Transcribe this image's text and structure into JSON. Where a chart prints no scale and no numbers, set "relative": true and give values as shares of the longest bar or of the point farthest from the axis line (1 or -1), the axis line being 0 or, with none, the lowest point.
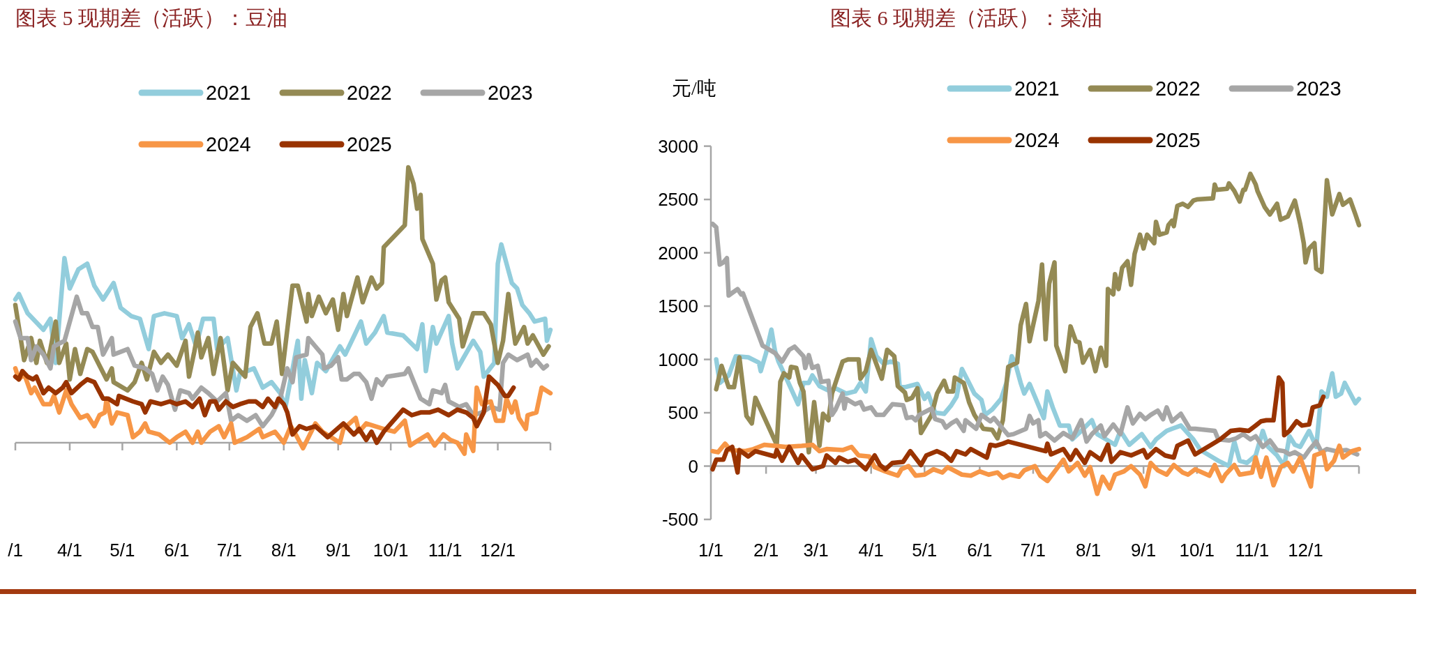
{
  "chart_data": [
    {
      "type": "line",
      "title": "图表 5  现期差（活跃）：豆油",
      "relative": true,
      "legend": "top",
      "xlim": [
        "--03-01",
        "--12-31"
      ],
      "xticks": [
        {
          "value": "--03-01",
          "label": "/1"
        },
        {
          "value": "--04-01",
          "label": "4/1"
        },
        {
          "value": "--05-01",
          "label": "5/1"
        },
        {
          "value": "--06-01",
          "label": "6/1"
        },
        {
          "value": "--07-01",
          "label": "7/1"
        },
        {
          "value": "--08-01",
          "label": "8/1"
        },
        {
          "value": "--09-01",
          "label": "9/1"
        },
        {
          "value": "--10-01",
          "label": "10/1"
        },
        {
          "value": "--11-01",
          "label": "11/1"
        },
        {
          "value": "--12-01",
          "label": "12/1"
        },
        {
          "value": "--12-31",
          "label": null
        }
      ],
      "series": [
        {
          "name": "2021",
          "color": "#92cddc",
          "x": [
            "--03-01",
            "--03-03",
            "--03-08",
            "--03-17",
            "--03-21",
            "--03-24",
            "--03-29",
            "--04-01",
            "--04-06",
            "--04-11",
            "--04-15",
            "--04-20",
            "--04-26",
            "--04-30",
            "--05-06",
            "--05-11",
            "--05-16",
            "--05-19",
            "--05-25",
            "--06-01",
            "--06-04",
            "--06-08",
            "--06-12",
            "--06-16",
            "--06-22",
            "--06-24",
            "--06-30",
            "--07-05",
            "--07-07",
            "--07-15",
            "--07-20",
            "--07-25",
            "--07-30",
            "--08-02",
            "--08-09",
            "--08-11",
            "--08-13",
            "--08-17",
            "--08-20",
            "--08-25",
            "--09-02",
            "--09-05",
            "--09-14",
            "--09-17",
            "--09-22",
            "--09-27",
            "--09-29",
            "--10-08",
            "--10-16",
            "--10-19",
            "--10-21",
            "--10-25",
            "--10-27",
            "--11-03",
            "--11-05",
            "--11-08",
            "--11-17",
            "--11-21",
            "--11-23",
            "--11-29",
            "--12-01",
            "--12-03",
            "--12-06",
            "--12-09",
            "--12-12",
            "--12-15",
            "--12-19",
            "--12-22",
            "--12-28",
            "--12-29",
            "--12-31"
          ],
          "values": [
            0.52,
            0.54,
            0.47,
            0.41,
            0.45,
            0.29,
            0.67,
            0.56,
            0.63,
            0.65,
            0.57,
            0.52,
            0.58,
            0.49,
            0.46,
            0.45,
            0.34,
            0.46,
            0.47,
            0.46,
            0.38,
            0.43,
            0.35,
            0.45,
            0.45,
            0.34,
            0.38,
            0.19,
            0.25,
            0.27,
            0.2,
            0.22,
            0.18,
            0.13,
            0.37,
            0.16,
            0.3,
            0.18,
            0.29,
            0.26,
            0.35,
            0.32,
            0.44,
            0.36,
            0.4,
            0.46,
            0.4,
            0.39,
            0.34,
            0.43,
            0.26,
            0.42,
            0.36,
            0.46,
            0.36,
            0.27,
            0.37,
            0.33,
            0.24,
            0.29,
            0.65,
            0.72,
            0.65,
            0.58,
            0.56,
            0.5,
            0.47,
            0.44,
            0.45,
            0.37,
            0.41
          ]
        },
        {
          "name": "2022",
          "color": "#948a54",
          "x": [
            "--03-01",
            "--03-06",
            "--03-10",
            "--03-13",
            "--03-15",
            "--03-19",
            "--03-21",
            "--03-24",
            "--03-26",
            "--03-30",
            "--04-01",
            "--04-04",
            "--04-07",
            "--04-11",
            "--04-14",
            "--04-18",
            "--04-22",
            "--04-25",
            "--04-26",
            "--05-04",
            "--05-08",
            "--05-12",
            "--05-15",
            "--05-19",
            "--05-23",
            "--05-27",
            "--06-01",
            "--06-06",
            "--06-08",
            "--06-11",
            "--06-13",
            "--06-15",
            "--06-19",
            "--06-22",
            "--06-26",
            "--06-30",
            "--07-03",
            "--07-10",
            "--07-13",
            "--07-17",
            "--07-21",
            "--07-25",
            "--07-28",
            "--07-31",
            "--08-06",
            "--08-09",
            "--08-14",
            "--08-15",
            "--08-17",
            "--08-21",
            "--08-25",
            "--08-29",
            "--09-01",
            "--09-04",
            "--09-06",
            "--09-12",
            "--09-15",
            "--09-20",
            "--09-23",
            "--09-26",
            "--09-27",
            "--10-09",
            "--10-11",
            "--10-14",
            "--10-16",
            "--10-18",
            "--10-19",
            "--10-25",
            "--10-27",
            "--10-30",
            "--11-01",
            "--11-03",
            "--11-09",
            "--11-11",
            "--11-17",
            "--11-23",
            "--11-27",
            "--12-01",
            "--12-04",
            "--12-07",
            "--12-11",
            "--12-16",
            "--12-18",
            "--12-21",
            "--12-27",
            "--12-30"
          ],
          "values": [
            0.5,
            0.3,
            0.38,
            0.29,
            0.37,
            0.29,
            0.34,
            0.44,
            0.29,
            0.36,
            0.23,
            0.34,
            0.25,
            0.34,
            0.33,
            0.28,
            0.23,
            0.27,
            0.22,
            0.19,
            0.22,
            0.29,
            0.23,
            0.33,
            0.29,
            0.32,
            0.28,
            0.37,
            0.24,
            0.33,
            0.4,
            0.31,
            0.38,
            0.25,
            0.38,
            0.19,
            0.29,
            0.24,
            0.42,
            0.47,
            0.36,
            0.36,
            0.44,
            0.25,
            0.57,
            0.57,
            0.44,
            0.54,
            0.46,
            0.53,
            0.47,
            0.52,
            0.41,
            0.54,
            0.46,
            0.6,
            0.51,
            0.6,
            0.56,
            0.58,
            0.71,
            0.79,
            1.0,
            0.94,
            0.85,
            0.9,
            0.74,
            0.65,
            0.52,
            0.59,
            0.6,
            0.51,
            0.45,
            0.35,
            0.47,
            0.47,
            0.43,
            0.29,
            0.37,
            0.54,
            0.36,
            0.42,
            0.36,
            0.39,
            0.32,
            0.35
          ]
        },
        {
          "name": "2023",
          "color": "#a6a6a6",
          "x": [
            "--03-01",
            "--03-04",
            "--03-08",
            "--03-10",
            "--03-13",
            "--03-17",
            "--03-21",
            "--03-23",
            "--03-29",
            "--04-05",
            "--04-08",
            "--04-11",
            "--04-14",
            "--04-17",
            "--04-20",
            "--04-25",
            "--04-26",
            "--05-04",
            "--05-08",
            "--05-14",
            "--05-18",
            "--05-21",
            "--05-24",
            "--05-27",
            "--05-31",
            "--06-03",
            "--06-08",
            "--06-10",
            "--06-15",
            "--06-19",
            "--06-24",
            "--06-29",
            "--07-02",
            "--07-06",
            "--07-11",
            "--07-16",
            "--07-20",
            "--07-25",
            "--07-30",
            "--08-03",
            "--08-06",
            "--08-08",
            "--08-14",
            "--08-15",
            "--08-19",
            "--08-23",
            "--08-24",
            "--08-28",
            "--09-01",
            "--09-03",
            "--09-06",
            "--09-10",
            "--09-13",
            "--09-17",
            "--09-20",
            "--09-23",
            "--09-26",
            "--09-29",
            "--10-09",
            "--10-11",
            "--10-18",
            "--10-23",
            "--10-25",
            "--10-30",
            "--11-01",
            "--11-03",
            "--11-09",
            "--11-13",
            "--11-17",
            "--11-22",
            "--11-27",
            "--12-02",
            "--12-04",
            "--12-07",
            "--12-12",
            "--12-18",
            "--12-20",
            "--12-23",
            "--12-27",
            "--12-29"
          ],
          "values": [
            0.44,
            0.38,
            0.38,
            0.3,
            0.35,
            0.32,
            0.27,
            0.35,
            0.37,
            0.53,
            0.47,
            0.47,
            0.42,
            0.42,
            0.32,
            0.38,
            0.32,
            0.34,
            0.28,
            0.27,
            0.25,
            0.19,
            0.24,
            0.21,
            0.12,
            0.19,
            0.18,
            0.16,
            0.2,
            0.18,
            0.15,
            0.18,
            0.08,
            0.1,
            0.08,
            0.1,
            0.06,
            0.1,
            0.16,
            0.27,
            0.22,
            0.31,
            0.32,
            0.38,
            0.35,
            0.32,
            0.27,
            0.28,
            0.31,
            0.23,
            0.23,
            0.25,
            0.25,
            0.22,
            0.16,
            0.23,
            0.21,
            0.24,
            0.25,
            0.27,
            0.16,
            0.14,
            0.19,
            0.18,
            0.21,
            0.15,
            0.13,
            0.14,
            0.1,
            0.11,
            0.13,
            0.12,
            0.29,
            0.32,
            0.3,
            0.32,
            0.28,
            0.3,
            0.27,
            0.28
          ]
        },
        {
          "name": "2024",
          "color": "#f79646",
          "x": [
            "--03-01",
            "--03-03",
            "--03-06",
            "--03-10",
            "--03-12",
            "--03-17",
            "--03-21",
            "--03-23",
            "--03-26",
            "--03-30",
            "--04-02",
            "--04-07",
            "--04-11",
            "--04-15",
            "--04-18",
            "--04-21",
            "--04-22",
            "--04-25",
            "--04-28",
            "--05-04",
            "--05-07",
            "--05-11",
            "--05-14",
            "--05-16",
            "--05-22",
            "--05-28",
            "--06-01",
            "--06-06",
            "--06-10",
            "--06-13",
            "--06-15",
            "--06-20",
            "--06-25",
            "--06-28",
            "--07-02",
            "--07-04",
            "--07-11",
            "--07-18",
            "--07-20",
            "--07-27",
            "--08-01",
            "--08-05",
            "--08-07",
            "--08-12",
            "--08-19",
            "--08-23",
            "--09-02",
            "--09-04",
            "--09-11",
            "--09-13",
            "--09-17",
            "--09-27",
            "--10-03",
            "--10-09",
            "--10-12",
            "--10-17",
            "--10-22",
            "--10-26",
            "--10-31",
            "--11-04",
            "--11-08",
            "--11-12",
            "--11-13",
            "--11-17",
            "--11-19",
            "--11-22",
            "--11-27",
            "--11-30",
            "--12-04",
            "--12-06",
            "--12-09",
            "--12-11",
            "--12-13",
            "--12-17",
            "--12-18",
            "--12-23",
            "--12-26",
            "--12-31"
          ],
          "values": [
            0.27,
            0.23,
            0.25,
            0.18,
            0.2,
            0.14,
            0.14,
            0.17,
            0.11,
            0.19,
            0.14,
            0.09,
            0.1,
            0.06,
            0.1,
            0.11,
            0.16,
            0.07,
            0.11,
            0.1,
            0.02,
            0.04,
            0.07,
            0.04,
            0.03,
            0.0,
            0.02,
            0.04,
            0.0,
            0.04,
            0.0,
            0.04,
            0.06,
            0.02,
            0.07,
            0.0,
            0.02,
            0.05,
            0.02,
            0.04,
            0.0,
            0.06,
            0.04,
            -0.02,
            0.07,
            0.04,
            0.0,
            0.05,
            0.09,
            0.04,
            0.07,
            0.05,
            0.04,
            0.08,
            -0.01,
            0.01,
            0.03,
            -0.01,
            0.03,
            0.01,
            0.0,
            -0.04,
            0.03,
            -0.03,
            0.2,
            0.14,
            0.15,
            0.08,
            0.08,
            0.16,
            0.11,
            0.15,
            0.09,
            0.05,
            0.1,
            0.11,
            0.2,
            0.18
          ]
        },
        {
          "name": "2025",
          "color": "#993300",
          "x": [
            "--03-01",
            "--03-03",
            "--03-05",
            "--03-08",
            "--03-11",
            "--03-13",
            "--03-17",
            "--03-20",
            "--03-24",
            "--03-28",
            "--03-30",
            "--04-02",
            "--04-07",
            "--04-11",
            "--04-15",
            "--04-20",
            "--04-23",
            "--04-28",
            "--04-29",
            "--05-07",
            "--05-12",
            "--05-14",
            "--05-17",
            "--05-23",
            "--05-28",
            "--06-01",
            "--06-06",
            "--06-10",
            "--06-14",
            "--06-17",
            "--06-20",
            "--06-23",
            "--06-25",
            "--06-29",
            "--07-03",
            "--07-07",
            "--07-12",
            "--07-16",
            "--07-20",
            "--07-23",
            "--07-27",
            "--07-29",
            "--08-01",
            "--08-03",
            "--08-06",
            "--08-10",
            "--08-14",
            "--08-19",
            "--08-26",
            "--09-04",
            "--09-10",
            "--09-13",
            "--09-17",
            "--09-20",
            "--09-23",
            "--09-27",
            "--10-08",
            "--10-13",
            "--10-18",
            "--10-23",
            "--10-28",
            "--11-03",
            "--11-08",
            "--11-13",
            "--11-17",
            "--11-19",
            "--11-23",
            "--11-26",
            "--12-01",
            "--12-05",
            "--12-07",
            "--12-10"
          ],
          "values": [
            0.24,
            0.23,
            0.26,
            0.24,
            0.23,
            0.24,
            0.18,
            0.2,
            0.18,
            0.2,
            0.22,
            0.18,
            0.21,
            0.23,
            0.22,
            0.16,
            0.16,
            0.14,
            0.17,
            0.15,
            0.14,
            0.11,
            0.15,
            0.14,
            0.15,
            0.14,
            0.15,
            0.13,
            0.16,
            0.1,
            0.15,
            0.15,
            0.12,
            0.15,
            0.13,
            0.14,
            0.15,
            0.15,
            0.13,
            0.16,
            0.13,
            0.16,
            0.14,
            0.11,
            0.03,
            0.06,
            0.05,
            0.06,
            0.02,
            0.07,
            0.03,
            0.05,
            0.01,
            0.04,
            0.0,
            0.04,
            0.12,
            0.1,
            0.11,
            0.11,
            0.12,
            0.1,
            0.12,
            0.11,
            0.09,
            0.06,
            0.11,
            0.24,
            0.21,
            0.17,
            0.17,
            0.2
          ]
        }
      ]
    },
    {
      "type": "line",
      "title": "图表 6  现期差（活跃）：菜油",
      "ylabel": "元/吨",
      "legend": "top",
      "xlim": [
        "--01-01",
        "--12-31"
      ],
      "ylim": [
        -500,
        3000
      ],
      "yticks": [
        -500,
        0,
        500,
        1000,
        1500,
        2000,
        2500,
        3000
      ],
      "xticks": [
        {
          "value": "--01-01",
          "label": "1/1"
        },
        {
          "value": "--02-01",
          "label": "2/1"
        },
        {
          "value": "--03-01",
          "label": "3/1"
        },
        {
          "value": "--04-01",
          "label": "4/1"
        },
        {
          "value": "--05-01",
          "label": "5/1"
        },
        {
          "value": "--06-01",
          "label": "6/1"
        },
        {
          "value": "--07-01",
          "label": "7/1"
        },
        {
          "value": "--08-01",
          "label": "8/1"
        },
        {
          "value": "--09-01",
          "label": "9/1"
        },
        {
          "value": "--10-01",
          "label": "10/1"
        },
        {
          "value": "--11-01",
          "label": "11/1"
        },
        {
          "value": "--12-01",
          "label": "12/1"
        },
        {
          "value": "--12-31",
          "label": null
        }
      ],
      "series": [
        {
          "name": "2021",
          "color": "#92cddc",
          "x": [
            "--01-04",
            "--01-06",
            "--01-11",
            "--01-15",
            "--01-22",
            "--01-28",
            "--01-29",
            "--02-01",
            "--02-04",
            "--02-06",
            "--02-08",
            "--02-13",
            "--02-19",
            "--02-22",
            "--02-25",
            "--02-27",
            "--03-03",
            "--03-09",
            "--03-12",
            "--03-18",
            "--03-23",
            "--03-26",
            "--03-29",
            "--04-01",
            "--04-04",
            "--04-08",
            "--04-12",
            "--04-16",
            "--04-17",
            "--04-20",
            "--04-27",
            "--05-01",
            "--05-03",
            "--05-07",
            "--05-12",
            "--05-16",
            "--05-19",
            "--05-22",
            "--05-26",
            "--05-29",
            "--06-02",
            "--06-04",
            "--06-08",
            "--06-13",
            "--06-16",
            "--06-19",
            "--06-21",
            "--06-24",
            "--06-26",
            "--06-29",
            "--07-02",
            "--07-05",
            "--07-07",
            "--07-09",
            "--07-12",
            "--07-16",
            "--07-21",
            "--07-23",
            "--07-28",
            "--08-03",
            "--08-06",
            "--08-11",
            "--08-16",
            "--08-19",
            "--08-24",
            "--08-31",
            "--09-05",
            "--09-08",
            "--09-14",
            "--09-17",
            "--09-22",
            "--09-29",
            "--10-03",
            "--10-10",
            "--10-13",
            "--10-19",
            "--10-22",
            "--10-25",
            "--10-29",
            "--11-03",
            "--11-07",
            "--11-10",
            "--11-15",
            "--11-19",
            "--11-22",
            "--11-25",
            "--11-28",
            "--12-03",
            "--12-07",
            "--12-10",
            "--12-13",
            "--12-16",
            "--12-18",
            "--12-21",
            "--12-23",
            "--12-29",
            "--12-31"
          ],
          "values": [
            1000,
            780,
            850,
            1030,
            1020,
            970,
            890,
            1060,
            1280,
            1080,
            980,
            800,
            580,
            780,
            780,
            850,
            750,
            700,
            730,
            680,
            700,
            780,
            700,
            1190,
            1030,
            960,
            980,
            960,
            750,
            740,
            770,
            630,
            680,
            500,
            490,
            570,
            650,
            910,
            780,
            680,
            620,
            480,
            530,
            630,
            780,
            1030,
            960,
            780,
            680,
            770,
            650,
            530,
            450,
            700,
            550,
            380,
            380,
            250,
            330,
            430,
            300,
            250,
            200,
            330,
            200,
            300,
            180,
            250,
            330,
            350,
            380,
            250,
            150,
            80,
            50,
            0,
            230,
            50,
            30,
            100,
            330,
            180,
            100,
            0,
            280,
            200,
            180,
            330,
            180,
            700,
            650,
            870,
            650,
            680,
            780,
            590,
            630
          ]
        },
        {
          "name": "2022",
          "color": "#948a54",
          "x": [
            "--01-04",
            "--01-07",
            "--01-11",
            "--01-14",
            "--01-17",
            "--01-21",
            "--01-24",
            "--01-26",
            "--02-07",
            "--02-09",
            "--02-11",
            "--02-14",
            "--02-15",
            "--02-18",
            "--02-20",
            "--02-22",
            "--02-25",
            "--02-28",
            "--03-03",
            "--03-05",
            "--03-08",
            "--03-10",
            "--03-16",
            "--03-19",
            "--03-25",
            "--03-26",
            "--03-29",
            "--04-01",
            "--04-07",
            "--04-10",
            "--04-14",
            "--04-16",
            "--04-20",
            "--04-21",
            "--04-24",
            "--04-27",
            "--04-29",
            "--05-05",
            "--05-08",
            "--05-12",
            "--05-14",
            "--05-17",
            "--05-18",
            "--05-23",
            "--05-26",
            "--05-29",
            "--06-03",
            "--06-08",
            "--06-11",
            "--06-14",
            "--06-17",
            "--06-22",
            "--06-24",
            "--06-27",
            "--06-29",
            "--07-04",
            "--07-06",
            "--07-08",
            "--07-10",
            "--07-13",
            "--07-14",
            "--07-19",
            "--07-22",
            "--07-25",
            "--07-27",
            "--07-29",
            "--08-02",
            "--08-05",
            "--08-08",
            "--08-11",
            "--08-12",
            "--08-15",
            "--08-16",
            "--08-18",
            "--08-20",
            "--08-23",
            "--08-25",
            "--08-27",
            "--08-30",
            "--09-01",
            "--09-03",
            "--09-07",
            "--09-08",
            "--09-10",
            "--09-14",
            "--09-15",
            "--09-17",
            "--09-18",
            "--09-20",
            "--09-23",
            "--09-26",
            "--09-29",
            "--10-01",
            "--10-10",
            "--10-11",
            "--10-12",
            "--10-18",
            "--10-19",
            "--10-22",
            "--10-25",
            "--10-27",
            "--10-28",
            "--10-31",
            "--11-03",
            "--11-04",
            "--11-08",
            "--11-11",
            "--11-15",
            "--11-17",
            "--11-21",
            "--11-25",
            "--11-28",
            "--11-30",
            "--12-01",
            "--12-03",
            "--12-06",
            "--12-07",
            "--12-10",
            "--12-13",
            "--12-16",
            "--12-20",
            "--12-22",
            "--12-26",
            "--12-29",
            "--12-31"
          ],
          "values": [
            720,
            940,
            740,
            740,
            1020,
            470,
            400,
            640,
            200,
            790,
            870,
            830,
            930,
            920,
            780,
            700,
            130,
            600,
            190,
            490,
            430,
            680,
            980,
            1000,
            1000,
            820,
            890,
            1090,
            820,
            1090,
            1030,
            750,
            690,
            620,
            640,
            730,
            310,
            480,
            680,
            800,
            700,
            700,
            830,
            780,
            600,
            480,
            350,
            340,
            260,
            430,
            930,
            970,
            1320,
            1520,
            1170,
            1550,
            1890,
            1190,
            1710,
            1910,
            1130,
            890,
            1310,
            1170,
            1160,
            970,
            1090,
            890,
            1110,
            940,
            1660,
            1610,
            1800,
            1660,
            1860,
            1920,
            1700,
            1990,
            2170,
            2040,
            2170,
            2090,
            2290,
            2170,
            2190,
            2260,
            2300,
            2250,
            2440,
            2460,
            2430,
            2490,
            2500,
            2510,
            2640,
            2590,
            2600,
            2650,
            2580,
            2480,
            2590,
            2590,
            2740,
            2640,
            2580,
            2430,
            2360,
            2460,
            2310,
            2340,
            2490,
            2270,
            2090,
            1910,
            2040,
            2090,
            1850,
            1820,
            2680,
            2360,
            2550,
            2450,
            2500,
            2360,
            2260
          ]
        },
        {
          "name": "2023",
          "color": "#a6a6a6",
          "x": [
            "--01-02",
            "--01-04",
            "--01-06",
            "--01-08",
            "--01-10",
            "--01-11",
            "--01-16",
            "--01-18",
            "--01-19",
            "--01-30",
            "--02-01",
            "--02-06",
            "--02-10",
            "--02-14",
            "--02-17",
            "--02-22",
            "--02-23",
            "--02-25",
            "--02-27",
            "--03-02",
            "--03-04",
            "--03-08",
            "--03-10",
            "--03-12",
            "--03-16",
            "--03-17",
            "--03-18",
            "--03-23",
            "--03-26",
            "--03-28",
            "--04-01",
            "--04-04",
            "--04-08",
            "--04-13",
            "--04-19",
            "--04-21",
            "--04-24",
            "--04-26",
            "--04-28",
            "--05-05",
            "--05-07",
            "--05-11",
            "--05-13",
            "--05-16",
            "--05-19",
            "--05-23",
            "--05-24",
            "--05-30",
            "--06-02",
            "--06-07",
            "--06-09",
            "--06-14",
            "--06-17",
            "--06-20",
            "--06-27",
            "--06-29",
            "--07-01",
            "--07-04",
            "--07-05",
            "--07-08",
            "--07-13",
            "--07-18",
            "--07-23",
            "--07-28",
            "--07-31",
            "--08-03",
            "--08-08",
            "--08-10",
            "--08-15",
            "--08-19",
            "--08-23",
            "--08-26",
            "--08-30",
            "--09-02",
            "--09-05",
            "--09-09",
            "--09-12",
            "--09-14",
            "--09-17",
            "--09-22",
            "--09-27",
            "--09-30",
            "--10-11",
            "--10-13",
            "--10-19",
            "--10-23",
            "--10-27",
            "--10-31",
            "--11-03",
            "--11-07",
            "--11-11",
            "--11-15",
            "--11-19",
            "--11-22",
            "--11-25",
            "--11-30",
            "--12-03",
            "--12-07",
            "--12-10",
            "--12-13",
            "--12-18",
            "--12-24",
            "--12-30"
          ],
          "values": [
            2270,
            2240,
            1890,
            1910,
            1950,
            1600,
            1660,
            1610,
            1620,
            1130,
            1110,
            1060,
            980,
            1090,
            1120,
            1030,
            920,
            1040,
            920,
            940,
            790,
            800,
            480,
            530,
            680,
            540,
            630,
            580,
            600,
            530,
            550,
            480,
            480,
            580,
            570,
            450,
            460,
            430,
            480,
            540,
            440,
            420,
            360,
            400,
            430,
            330,
            430,
            350,
            480,
            420,
            450,
            350,
            290,
            300,
            350,
            470,
            400,
            430,
            280,
            310,
            240,
            310,
            260,
            430,
            230,
            300,
            380,
            280,
            390,
            300,
            550,
            400,
            490,
            440,
            480,
            520,
            440,
            550,
            420,
            490,
            350,
            350,
            330,
            250,
            240,
            260,
            300,
            250,
            280,
            180,
            240,
            150,
            140,
            110,
            130,
            80,
            150,
            230,
            130,
            160,
            140,
            150,
            110
          ]
        },
        {
          "name": "2024",
          "color": "#f79646",
          "x": [
            "--01-02",
            "--01-05",
            "--01-09",
            "--01-12",
            "--01-20",
            "--01-25",
            "--01-31",
            "--02-06",
            "--02-12",
            "--02-21",
            "--02-27",
            "--03-03",
            "--03-07",
            "--03-16",
            "--03-21",
            "--03-25",
            "--03-31",
            "--04-03",
            "--04-09",
            "--04-16",
            "--04-18",
            "--04-22",
            "--04-26",
            "--05-01",
            "--05-06",
            "--05-11",
            "--05-14",
            "--05-22",
            "--05-27",
            "--06-01",
            "--06-06",
            "--06-11",
            "--06-14",
            "--06-18",
            "--06-23",
            "--06-26",
            "--07-02",
            "--07-05",
            "--07-09",
            "--07-14",
            "--07-18",
            "--07-21",
            "--07-26",
            "--07-30",
            "--08-02",
            "--08-06",
            "--08-09",
            "--08-13",
            "--08-16",
            "--08-21",
            "--08-25",
            "--08-30",
            "--09-02",
            "--09-05",
            "--09-09",
            "--09-14",
            "--09-18",
            "--09-23",
            "--09-26",
            "--09-30",
            "--10-08",
            "--10-11",
            "--10-15",
            "--10-17",
            "--10-22",
            "--10-25",
            "--11-01",
            "--11-03",
            "--11-06",
            "--11-09",
            "--11-13",
            "--11-17",
            "--11-21",
            "--11-24",
            "--11-28",
            "--12-04",
            "--12-06",
            "--12-11",
            "--12-13",
            "--12-17",
            "--12-20",
            "--12-22",
            "--12-27",
            "--12-31"
          ],
          "values": [
            140,
            130,
            210,
            150,
            140,
            160,
            200,
            190,
            180,
            190,
            200,
            140,
            160,
            150,
            180,
            100,
            90,
            -10,
            -50,
            -90,
            -30,
            0,
            -90,
            -80,
            -30,
            -60,
            -10,
            -80,
            -90,
            -50,
            -80,
            -60,
            -110,
            -80,
            -100,
            -40,
            0,
            -90,
            -140,
            -30,
            60,
            -50,
            30,
            -90,
            -10,
            -260,
            -100,
            -210,
            -80,
            -50,
            0,
            -80,
            -190,
            30,
            -40,
            -80,
            10,
            -60,
            -80,
            -30,
            -90,
            10,
            -140,
            -80,
            10,
            -80,
            -60,
            80,
            -100,
            80,
            -180,
            -10,
            30,
            -50,
            80,
            -190,
            100,
            130,
            -30,
            50,
            190,
            80,
            140,
            160
          ]
        },
        {
          "name": "2025",
          "color": "#993300",
          "x": [
            "--01-02",
            "--01-04",
            "--01-08",
            "--01-10",
            "--01-13",
            "--01-16",
            "--01-17",
            "--01-22",
            "--01-26",
            "--02-06",
            "--02-07",
            "--02-10",
            "--02-14",
            "--02-19",
            "--02-21",
            "--02-27",
            "--03-05",
            "--03-07",
            "--03-12",
            "--03-14",
            "--03-19",
            "--03-23",
            "--03-29",
            "--04-03",
            "--04-06",
            "--04-09",
            "--04-13",
            "--04-19",
            "--04-23",
            "--04-29",
            "--05-02",
            "--05-08",
            "--05-12",
            "--05-16",
            "--05-19",
            "--05-24",
            "--05-27",
            "--06-05",
            "--06-07",
            "--06-10",
            "--06-14",
            "--06-17",
            "--07-08",
            "--07-09",
            "--07-11",
            "--07-18",
            "--07-22",
            "--07-25",
            "--07-30",
            "--08-02",
            "--08-08",
            "--08-12",
            "--08-14",
            "--08-19",
            "--08-25",
            "--09-01",
            "--09-03",
            "--09-08",
            "--09-13",
            "--09-18",
            "--09-20",
            "--09-26",
            "--09-30",
            "--10-09",
            "--10-14",
            "--10-20",
            "--10-25",
            "--10-30",
            "--11-03",
            "--11-06",
            "--11-09",
            "--11-13",
            "--11-16",
            "--11-18",
            "--11-19",
            "--11-22",
            "--11-26",
            "--11-29",
            "--12-03",
            "--12-05",
            "--12-09",
            "--12-11"
          ],
          "values": [
            -30,
            60,
            60,
            150,
            180,
            -60,
            150,
            90,
            140,
            90,
            150,
            50,
            180,
            30,
            100,
            -30,
            0,
            100,
            30,
            80,
            40,
            60,
            -30,
            100,
            10,
            -30,
            30,
            40,
            140,
            10,
            100,
            140,
            110,
            50,
            140,
            110,
            160,
            80,
            200,
            190,
            210,
            230,
            140,
            210,
            110,
            160,
            60,
            150,
            30,
            130,
            60,
            200,
            40,
            130,
            100,
            150,
            80,
            160,
            100,
            80,
            190,
            240,
            110,
            200,
            250,
            330,
            340,
            330,
            380,
            420,
            430,
            430,
            830,
            780,
            290,
            330,
            420,
            380,
            390,
            550,
            570,
            650
          ]
        }
      ]
    }
  ]
}
